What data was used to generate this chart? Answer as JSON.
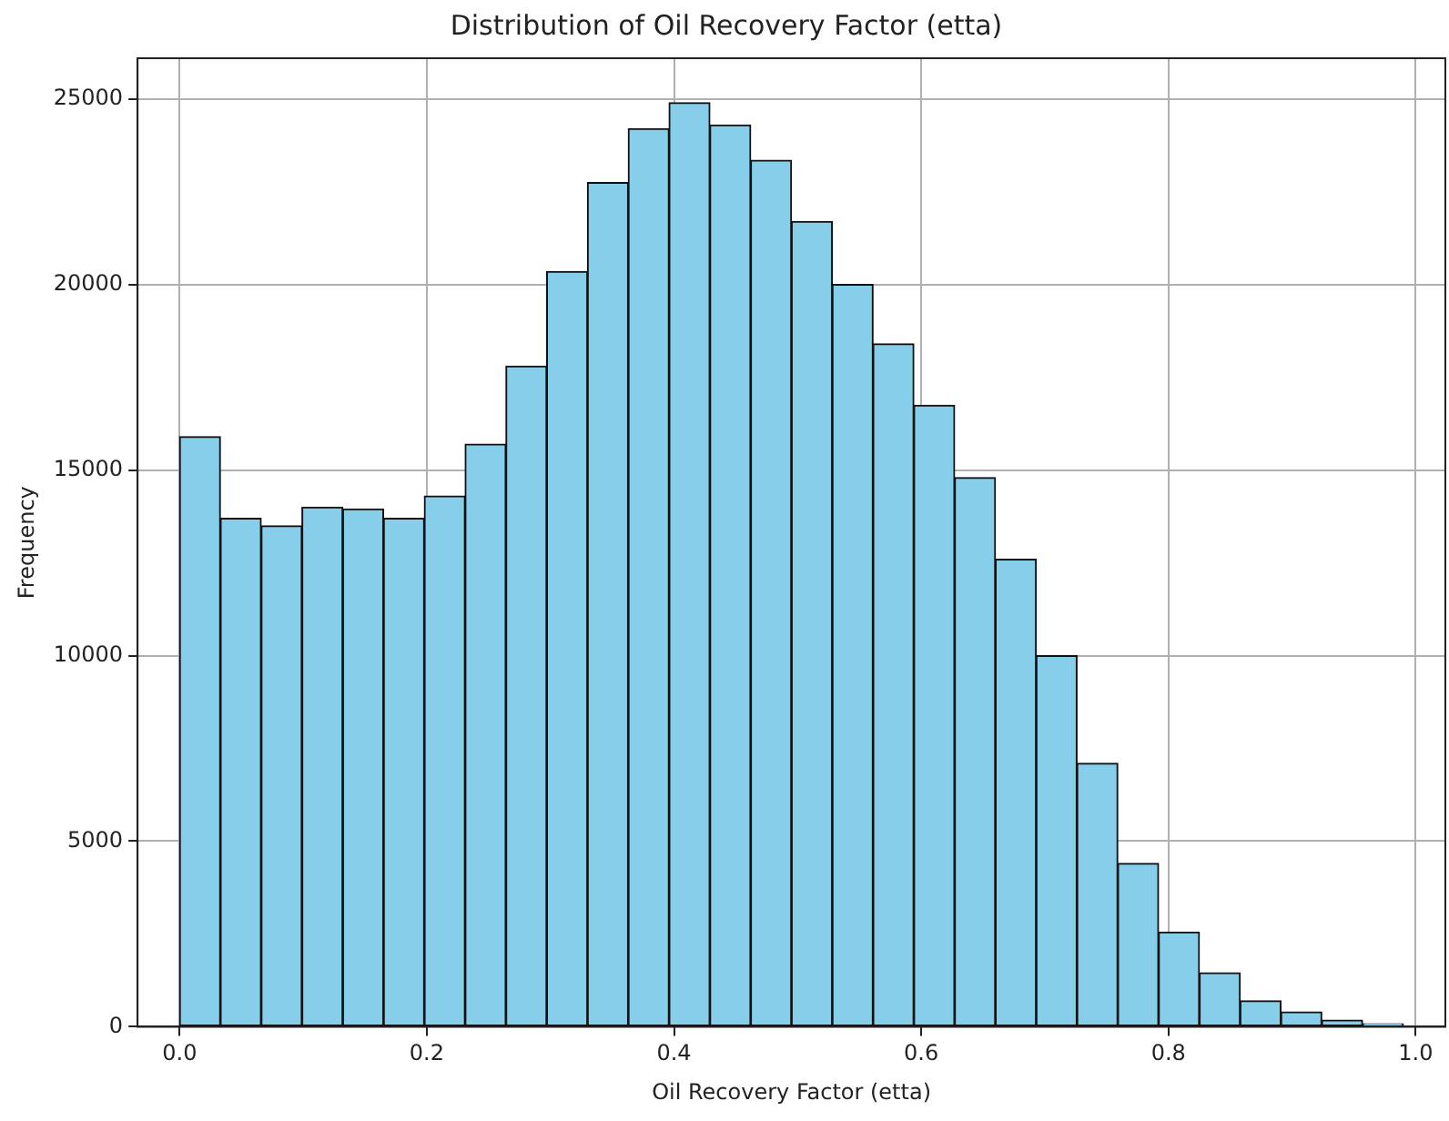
{
  "chart_data": {
    "type": "histogram",
    "title": "Distribution of Oil Recovery Factor (etta)",
    "xlabel": "Oil Recovery Factor (etta)",
    "ylabel": "Frequency",
    "bins": [
      0,
      0.033,
      0.066,
      0.099,
      0.132,
      0.165,
      0.198,
      0.231,
      0.264,
      0.297,
      0.33,
      0.363,
      0.396,
      0.429,
      0.462,
      0.495,
      0.528,
      0.561,
      0.594,
      0.627,
      0.66,
      0.693,
      0.726,
      0.759,
      0.792,
      0.825,
      0.858,
      0.891,
      0.924,
      0.957,
      0.99
    ],
    "values": [
      15900,
      13700,
      13500,
      14000,
      13950,
      13700,
      14300,
      15700,
      17800,
      20350,
      22750,
      24200,
      24900,
      24300,
      23350,
      21700,
      20000,
      18400,
      16750,
      14800,
      12600,
      10000,
      7100,
      4400,
      2550,
      1450,
      700,
      400,
      180,
      80
    ],
    "color": "#87ceeb",
    "xlim": [
      -0.034,
      1.024
    ],
    "ylim": [
      0,
      26100
    ],
    "xticks": [
      {
        "value": 0,
        "label": "0.0"
      },
      0.2,
      0.4,
      0.6,
      0.8,
      {
        "value": 1,
        "label": "1.0"
      }
    ],
    "yticks": [
      0,
      5000,
      10000,
      15000,
      20000,
      25000
    ],
    "grid": true
  }
}
